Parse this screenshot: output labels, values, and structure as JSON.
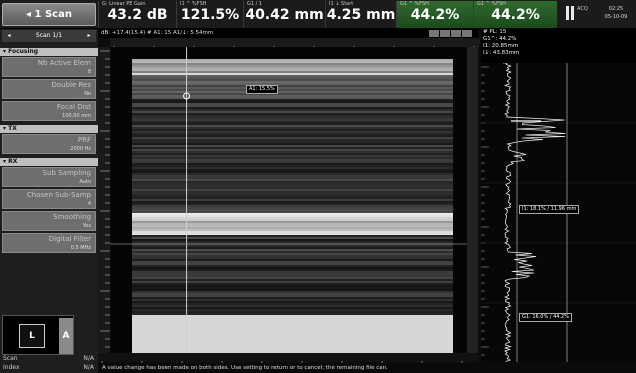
{
  "top_bar": {
    "view_button": "◂ 1 Scan",
    "readings": [
      {
        "label": "G: Linear PE Gain",
        "value": "43.2 dB",
        "green": false
      },
      {
        "label": "I1 ^ %FSH",
        "value": "121.5%",
        "green": false
      },
      {
        "label": "G1 / 1",
        "value": "40.42 mm",
        "green": false
      },
      {
        "label": "I1 ↓ Start",
        "value": "4.25 mm",
        "green": false
      },
      {
        "label": "G1 ^ %FSH",
        "value": "44.2%",
        "green": true
      },
      {
        "label": "G1 ^ %FSH",
        "value": "44.2%",
        "green": true
      }
    ],
    "acq_text": "ACQ",
    "clock_time": "02:25",
    "clock_date": "05-10-09"
  },
  "left_panel": {
    "scan_nav": {
      "prev": "◂",
      "label": "Scan 1/1",
      "next": "▸"
    },
    "sections": [
      {
        "title": "▾ Focusing",
        "items": [
          {
            "label": "Nb Active Elem",
            "value": "8"
          },
          {
            "label": "Double Res",
            "value": "No"
          },
          {
            "label": "Focal Dist",
            "value": "100.00 mm"
          }
        ]
      },
      {
        "title": "▾ TX",
        "items": [
          {
            "label": "PRF",
            "value": "2000 Hz"
          }
        ]
      },
      {
        "title": "▾ RX",
        "items": [
          {
            "label": "Sub Sampling",
            "value": "Auto"
          },
          {
            "label": "Chosen Sub-Samp",
            "value": "4"
          },
          {
            "label": "Smoothing",
            "value": "Yes"
          },
          {
            "label": "Digital Filter",
            "value": "0.5 MHz"
          }
        ]
      }
    ],
    "mini_view": {
      "left_label": "L",
      "right_label": "A"
    },
    "status_rows": [
      {
        "label": "Scan",
        "value": "N/A"
      },
      {
        "label": "Index",
        "value": "N/A"
      }
    ]
  },
  "bscan": {
    "header": "dB: +17.4(15.4) # A1: 15 A1/↓: 5.54mm",
    "cursor_label": "A1: 15.5%",
    "cursor_pct": 17
  },
  "ascan": {
    "header_lines": [
      "# PL: 15",
      "G1^: 44.2%",
      "I1: 20.85mm",
      "I↓: 43.83mm"
    ],
    "label_mid": "I1: 18.1% / 11.96 mm",
    "label_low": "G1: 16.0% / 44.2%"
  },
  "message": "A value change has been made on both sides. Use setting to return or to cancel; the remaining file can."
}
